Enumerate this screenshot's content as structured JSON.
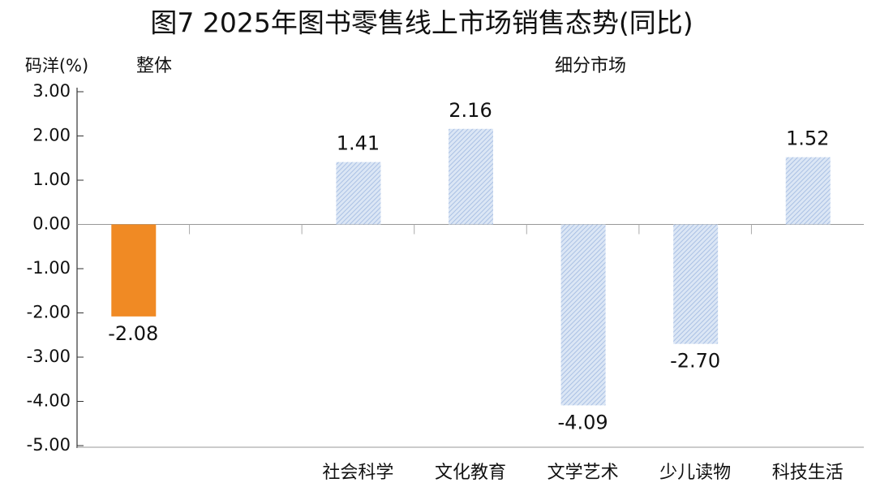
{
  "chart_data": {
    "type": "bar",
    "title": "图7 2025年图书零售线上市场销售态势(同比)",
    "y_label": "码洋(%)",
    "groups": [
      "整体",
      "细分市场"
    ],
    "categories": [
      null,
      null,
      "社会科学",
      "文化教育",
      "文学艺术",
      "少儿读物",
      "科技生活"
    ],
    "values": [
      -2.08,
      null,
      1.41,
      2.16,
      -4.09,
      -2.7,
      1.52
    ],
    "value_labels": [
      "-2.08",
      null,
      "1.41",
      "2.16",
      "-4.09",
      "-2.70",
      "1.52"
    ],
    "colors": [
      "#f08a24",
      null,
      "#b7cbea",
      "#b7cbea",
      "#b7cbea",
      "#b7cbea",
      "#b7cbea"
    ],
    "ylim": [
      -5,
      3
    ],
    "yticks": [
      {
        "value": 3,
        "label": "3.00"
      },
      {
        "value": 2,
        "label": "2.00"
      },
      {
        "value": 1,
        "label": "1.00"
      },
      {
        "value": 0,
        "label": "0.00"
      },
      {
        "value": -1,
        "label": "-1.00"
      },
      {
        "value": -2,
        "label": "-2.00"
      },
      {
        "value": -3,
        "label": "-3.00"
      },
      {
        "value": -4,
        "label": "-4.00"
      },
      {
        "value": -5,
        "label": "-5.00"
      }
    ]
  }
}
